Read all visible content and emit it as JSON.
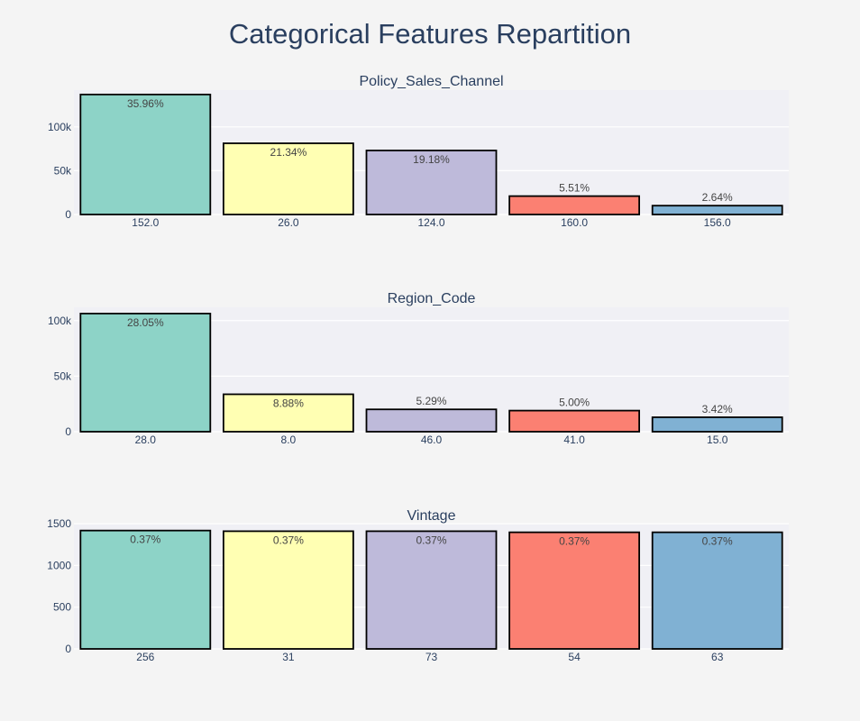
{
  "title": "Categorical Features Repartition",
  "colors": [
    "#8dd3c7",
    "#ffffb3",
    "#bebada",
    "#fb8072",
    "#80b1d3"
  ],
  "chart_data": [
    {
      "type": "bar",
      "title": "Policy_Sales_Channel",
      "categories": [
        "152.0",
        "26.0",
        "124.0",
        "160.0",
        "156.0"
      ],
      "values": [
        137000,
        81300,
        73100,
        21000,
        10100
      ],
      "labels": [
        "35.96%",
        "21.34%",
        "19.18%",
        "5.51%",
        "2.64%"
      ],
      "ylim": [
        0,
        142000
      ],
      "yticks": [
        0,
        50000,
        100000
      ],
      "ytick_labels": [
        "0",
        "50k",
        "100k"
      ],
      "grid": true
    },
    {
      "type": "bar",
      "title": "Region_Code",
      "categories": [
        "28.0",
        "8.0",
        "46.0",
        "41.0",
        "15.0"
      ],
      "values": [
        106400,
        33700,
        20100,
        19000,
        13000
      ],
      "labels": [
        "28.05%",
        "8.88%",
        "5.29%",
        "5.00%",
        "3.42%"
      ],
      "ylim": [
        0,
        112000
      ],
      "yticks": [
        0,
        50000,
        100000
      ],
      "ytick_labels": [
        "0",
        "50k",
        "100k"
      ],
      "grid": true
    },
    {
      "type": "bar",
      "title": "Vintage",
      "categories": [
        "256",
        "31",
        "73",
        "54",
        "63"
      ],
      "values": [
        1418,
        1410,
        1410,
        1397,
        1397
      ],
      "labels": [
        "0.37%",
        "0.37%",
        "0.37%",
        "0.37%",
        "0.37%"
      ],
      "ylim": [
        0,
        1490
      ],
      "yticks": [
        0,
        500,
        1000,
        1500
      ],
      "ytick_labels": [
        "0",
        "500",
        "1000",
        "1500"
      ],
      "grid": true
    }
  ]
}
